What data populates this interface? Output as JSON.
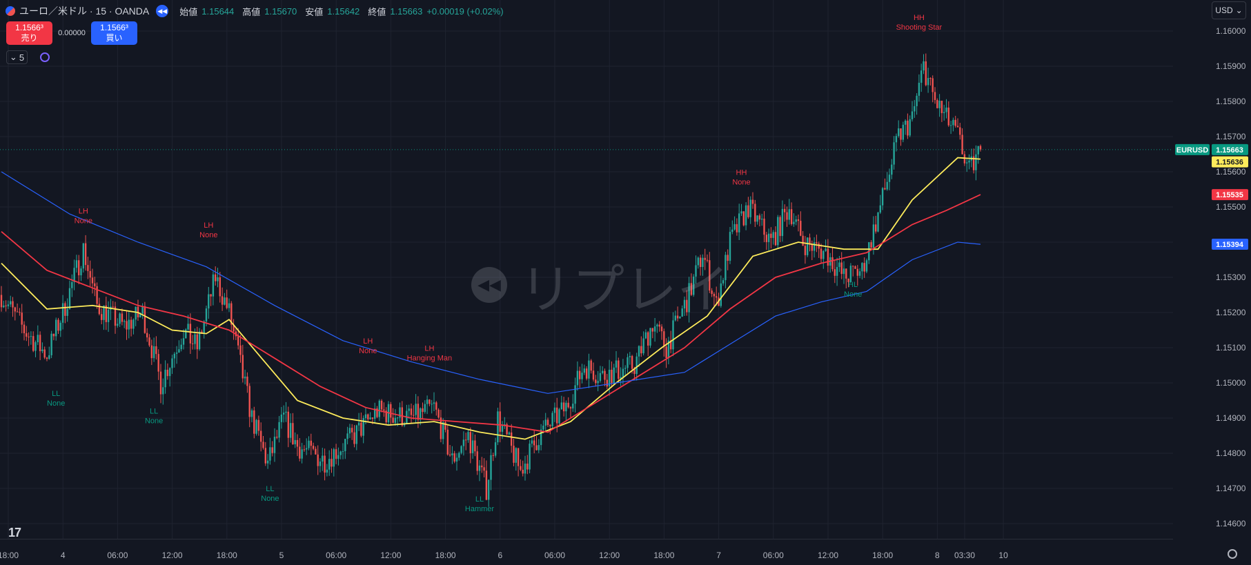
{
  "header": {
    "symbol_title": "ユーロ／米ドル · 15 · OANDA",
    "replay_icon": "rewind-icon",
    "ohlc": [
      {
        "label": "始値",
        "value": "1.15644"
      },
      {
        "label": "高値",
        "value": "1.15670"
      },
      {
        "label": "安値",
        "value": "1.15642"
      },
      {
        "label": "終値",
        "value": "1.15663"
      }
    ],
    "change": "+0.00019 (+0.02%)"
  },
  "trade": {
    "sell_price": "1.1566³",
    "sell_label": "売り",
    "spread": "0.00000",
    "buy_price": "1.1566³",
    "buy_label": "買い"
  },
  "toolbar": {
    "interval_value": "5",
    "currency": "USD"
  },
  "watermark": {
    "text": "リプレイ"
  },
  "colors": {
    "up": "#26a69a",
    "down": "#ef5350",
    "ma_short": "#fdeb5b",
    "ma_mid": "#f23645",
    "ma_long": "#2962ff",
    "background": "#131722"
  },
  "chart_data": {
    "type": "candlestick",
    "y_axis": {
      "min": 1.1455,
      "max": 1.161,
      "ticks": [
        "1.16000",
        "1.15900",
        "1.15800",
        "1.15700",
        "1.15600",
        "1.15500",
        "1.15400",
        "1.15300",
        "1.15200",
        "1.15100",
        "1.15000",
        "1.14900",
        "1.14800",
        "1.14700",
        "1.14600"
      ]
    },
    "x_axis": {
      "bar_min": 0,
      "bar_max": 410,
      "labels": [
        {
          "bar": 0,
          "text": "18:00"
        },
        {
          "bar": 24,
          "text": "4"
        },
        {
          "bar": 48,
          "text": "06:00"
        },
        {
          "bar": 72,
          "text": "12:00"
        },
        {
          "bar": 96,
          "text": "18:00"
        },
        {
          "bar": 120,
          "text": "5"
        },
        {
          "bar": 144,
          "text": "06:00"
        },
        {
          "bar": 168,
          "text": "12:00"
        },
        {
          "bar": 192,
          "text": "18:00"
        },
        {
          "bar": 216,
          "text": "6"
        },
        {
          "bar": 240,
          "text": "06:00"
        },
        {
          "bar": 264,
          "text": "12:00"
        },
        {
          "bar": 288,
          "text": "18:00"
        },
        {
          "bar": 312,
          "text": "7"
        },
        {
          "bar": 336,
          "text": "06:00"
        },
        {
          "bar": 360,
          "text": "12:00"
        },
        {
          "bar": 384,
          "text": "18:00"
        },
        {
          "bar": 408,
          "text": "8"
        },
        {
          "bar": 420,
          "text": "03:30"
        },
        {
          "bar": 437,
          "text": "10"
        }
      ]
    },
    "price_path": [
      [
        0,
        1.1525
      ],
      [
        10,
        1.1515
      ],
      [
        20,
        1.1508
      ],
      [
        27,
        1.152
      ],
      [
        36,
        1.1538
      ],
      [
        42,
        1.1522
      ],
      [
        54,
        1.1516
      ],
      [
        62,
        1.152
      ],
      [
        70,
        1.15
      ],
      [
        80,
        1.1515
      ],
      [
        86,
        1.151
      ],
      [
        94,
        1.153
      ],
      [
        100,
        1.152
      ],
      [
        110,
        1.149
      ],
      [
        117,
        1.1477
      ],
      [
        124,
        1.149
      ],
      [
        130,
        1.1482
      ],
      [
        142,
        1.1478
      ],
      [
        155,
        1.1485
      ],
      [
        165,
        1.1492
      ],
      [
        180,
        1.149
      ],
      [
        190,
        1.1493
      ],
      [
        198,
        1.1478
      ],
      [
        205,
        1.1485
      ],
      [
        213,
        1.147
      ],
      [
        218,
        1.149
      ],
      [
        228,
        1.1475
      ],
      [
        236,
        1.1485
      ],
      [
        248,
        1.1493
      ],
      [
        256,
        1.1505
      ],
      [
        264,
        1.1502
      ],
      [
        278,
        1.1505
      ],
      [
        286,
        1.1517
      ],
      [
        292,
        1.151
      ],
      [
        302,
        1.1525
      ],
      [
        308,
        1.1537
      ],
      [
        314,
        1.1522
      ],
      [
        320,
        1.154
      ],
      [
        328,
        1.155
      ],
      [
        338,
        1.154
      ],
      [
        346,
        1.155
      ],
      [
        352,
        1.154
      ],
      [
        362,
        1.1537
      ],
      [
        370,
        1.153
      ],
      [
        378,
        1.1532
      ],
      [
        386,
        1.155
      ],
      [
        394,
        1.157
      ],
      [
        400,
        1.1575
      ],
      [
        405,
        1.159
      ],
      [
        410,
        1.158
      ],
      [
        415,
        1.1575
      ],
      [
        420,
        1.157
      ],
      [
        425,
        1.156
      ],
      [
        430,
        1.1566
      ]
    ],
    "overlay_lines": [
      {
        "key": "ma_short",
        "points": [
          [
            0,
            1.1534
          ],
          [
            20,
            1.1521
          ],
          [
            40,
            1.1522
          ],
          [
            60,
            1.152
          ],
          [
            75,
            1.1515
          ],
          [
            90,
            1.1514
          ],
          [
            100,
            1.1518
          ],
          [
            113,
            1.1508
          ],
          [
            130,
            1.1495
          ],
          [
            150,
            1.149
          ],
          [
            170,
            1.1488
          ],
          [
            190,
            1.1489
          ],
          [
            210,
            1.1486
          ],
          [
            230,
            1.1484
          ],
          [
            250,
            1.1489
          ],
          [
            270,
            1.15
          ],
          [
            290,
            1.151
          ],
          [
            310,
            1.1519
          ],
          [
            330,
            1.1536
          ],
          [
            350,
            1.154
          ],
          [
            370,
            1.1538
          ],
          [
            385,
            1.1538
          ],
          [
            400,
            1.1552
          ],
          [
            420,
            1.1564
          ],
          [
            430,
            1.15636
          ]
        ]
      },
      {
        "key": "ma_mid",
        "points": [
          [
            0,
            1.1543
          ],
          [
            20,
            1.1532
          ],
          [
            40,
            1.1527
          ],
          [
            60,
            1.1522
          ],
          [
            80,
            1.1519
          ],
          [
            100,
            1.1515
          ],
          [
            120,
            1.1507
          ],
          [
            140,
            1.1499
          ],
          [
            160,
            1.1493
          ],
          [
            180,
            1.149
          ],
          [
            200,
            1.1489
          ],
          [
            220,
            1.1488
          ],
          [
            240,
            1.1486
          ],
          [
            260,
            1.1494
          ],
          [
            280,
            1.1502
          ],
          [
            300,
            1.151
          ],
          [
            320,
            1.1521
          ],
          [
            340,
            1.153
          ],
          [
            360,
            1.1534
          ],
          [
            380,
            1.1537
          ],
          [
            400,
            1.1545
          ],
          [
            415,
            1.1549
          ],
          [
            430,
            1.15535
          ]
        ]
      },
      {
        "key": "ma_long",
        "points": [
          [
            0,
            1.156
          ],
          [
            30,
            1.1548
          ],
          [
            60,
            1.154
          ],
          [
            90,
            1.1533
          ],
          [
            120,
            1.1522
          ],
          [
            150,
            1.1512
          ],
          [
            180,
            1.1506
          ],
          [
            210,
            1.1501
          ],
          [
            240,
            1.1497
          ],
          [
            270,
            1.15
          ],
          [
            300,
            1.1503
          ],
          [
            320,
            1.1511
          ],
          [
            340,
            1.1519
          ],
          [
            360,
            1.1523
          ],
          [
            380,
            1.1526
          ],
          [
            400,
            1.1535
          ],
          [
            420,
            1.154
          ],
          [
            430,
            1.15394
          ]
        ]
      }
    ],
    "annotations": [
      {
        "bar": 36,
        "price": 1.1545,
        "line1": "LH",
        "line2": "None",
        "tone": "down"
      },
      {
        "bar": 91,
        "price": 1.1541,
        "line1": "LH",
        "line2": "None",
        "tone": "down"
      },
      {
        "bar": 24,
        "price": 1.1499,
        "line1": "LL",
        "line2": "None",
        "tone": "up",
        "below": true
      },
      {
        "bar": 67,
        "price": 1.1494,
        "line1": "LL",
        "line2": "None",
        "tone": "up",
        "below": true
      },
      {
        "bar": 118,
        "price": 1.1472,
        "line1": "LL",
        "line2": "None",
        "tone": "up",
        "below": true
      },
      {
        "bar": 161,
        "price": 1.1508,
        "line1": "LH",
        "line2": "None",
        "tone": "down"
      },
      {
        "bar": 188,
        "price": 1.1506,
        "line1": "LH",
        "line2": "Hanging Man",
        "tone": "down"
      },
      {
        "bar": 210,
        "price": 1.1469,
        "line1": "LL",
        "line2": "Hammer",
        "tone": "up",
        "below": true
      },
      {
        "bar": 325,
        "price": 1.1556,
        "line1": "HH",
        "line2": "None",
        "tone": "down"
      },
      {
        "bar": 374,
        "price": 1.153,
        "line1": "HL",
        "line2": "None",
        "tone": "up",
        "below": true
      },
      {
        "bar": 403,
        "price": 1.16,
        "line1": "HH",
        "line2": "Shooting Star",
        "tone": "down"
      }
    ],
    "price_labels": [
      {
        "price": 1.15663,
        "text": "1.15663",
        "name": "EURUSD",
        "color": "#089981",
        "dashed": true
      },
      {
        "price": 1.15636,
        "text": "1.15636",
        "color": "#fdeb5b",
        "dark_text": true
      },
      {
        "price": 1.15535,
        "text": "1.15535",
        "color": "#f23645"
      },
      {
        "price": 1.15394,
        "text": "1.15394",
        "color": "#2962ff"
      }
    ]
  }
}
